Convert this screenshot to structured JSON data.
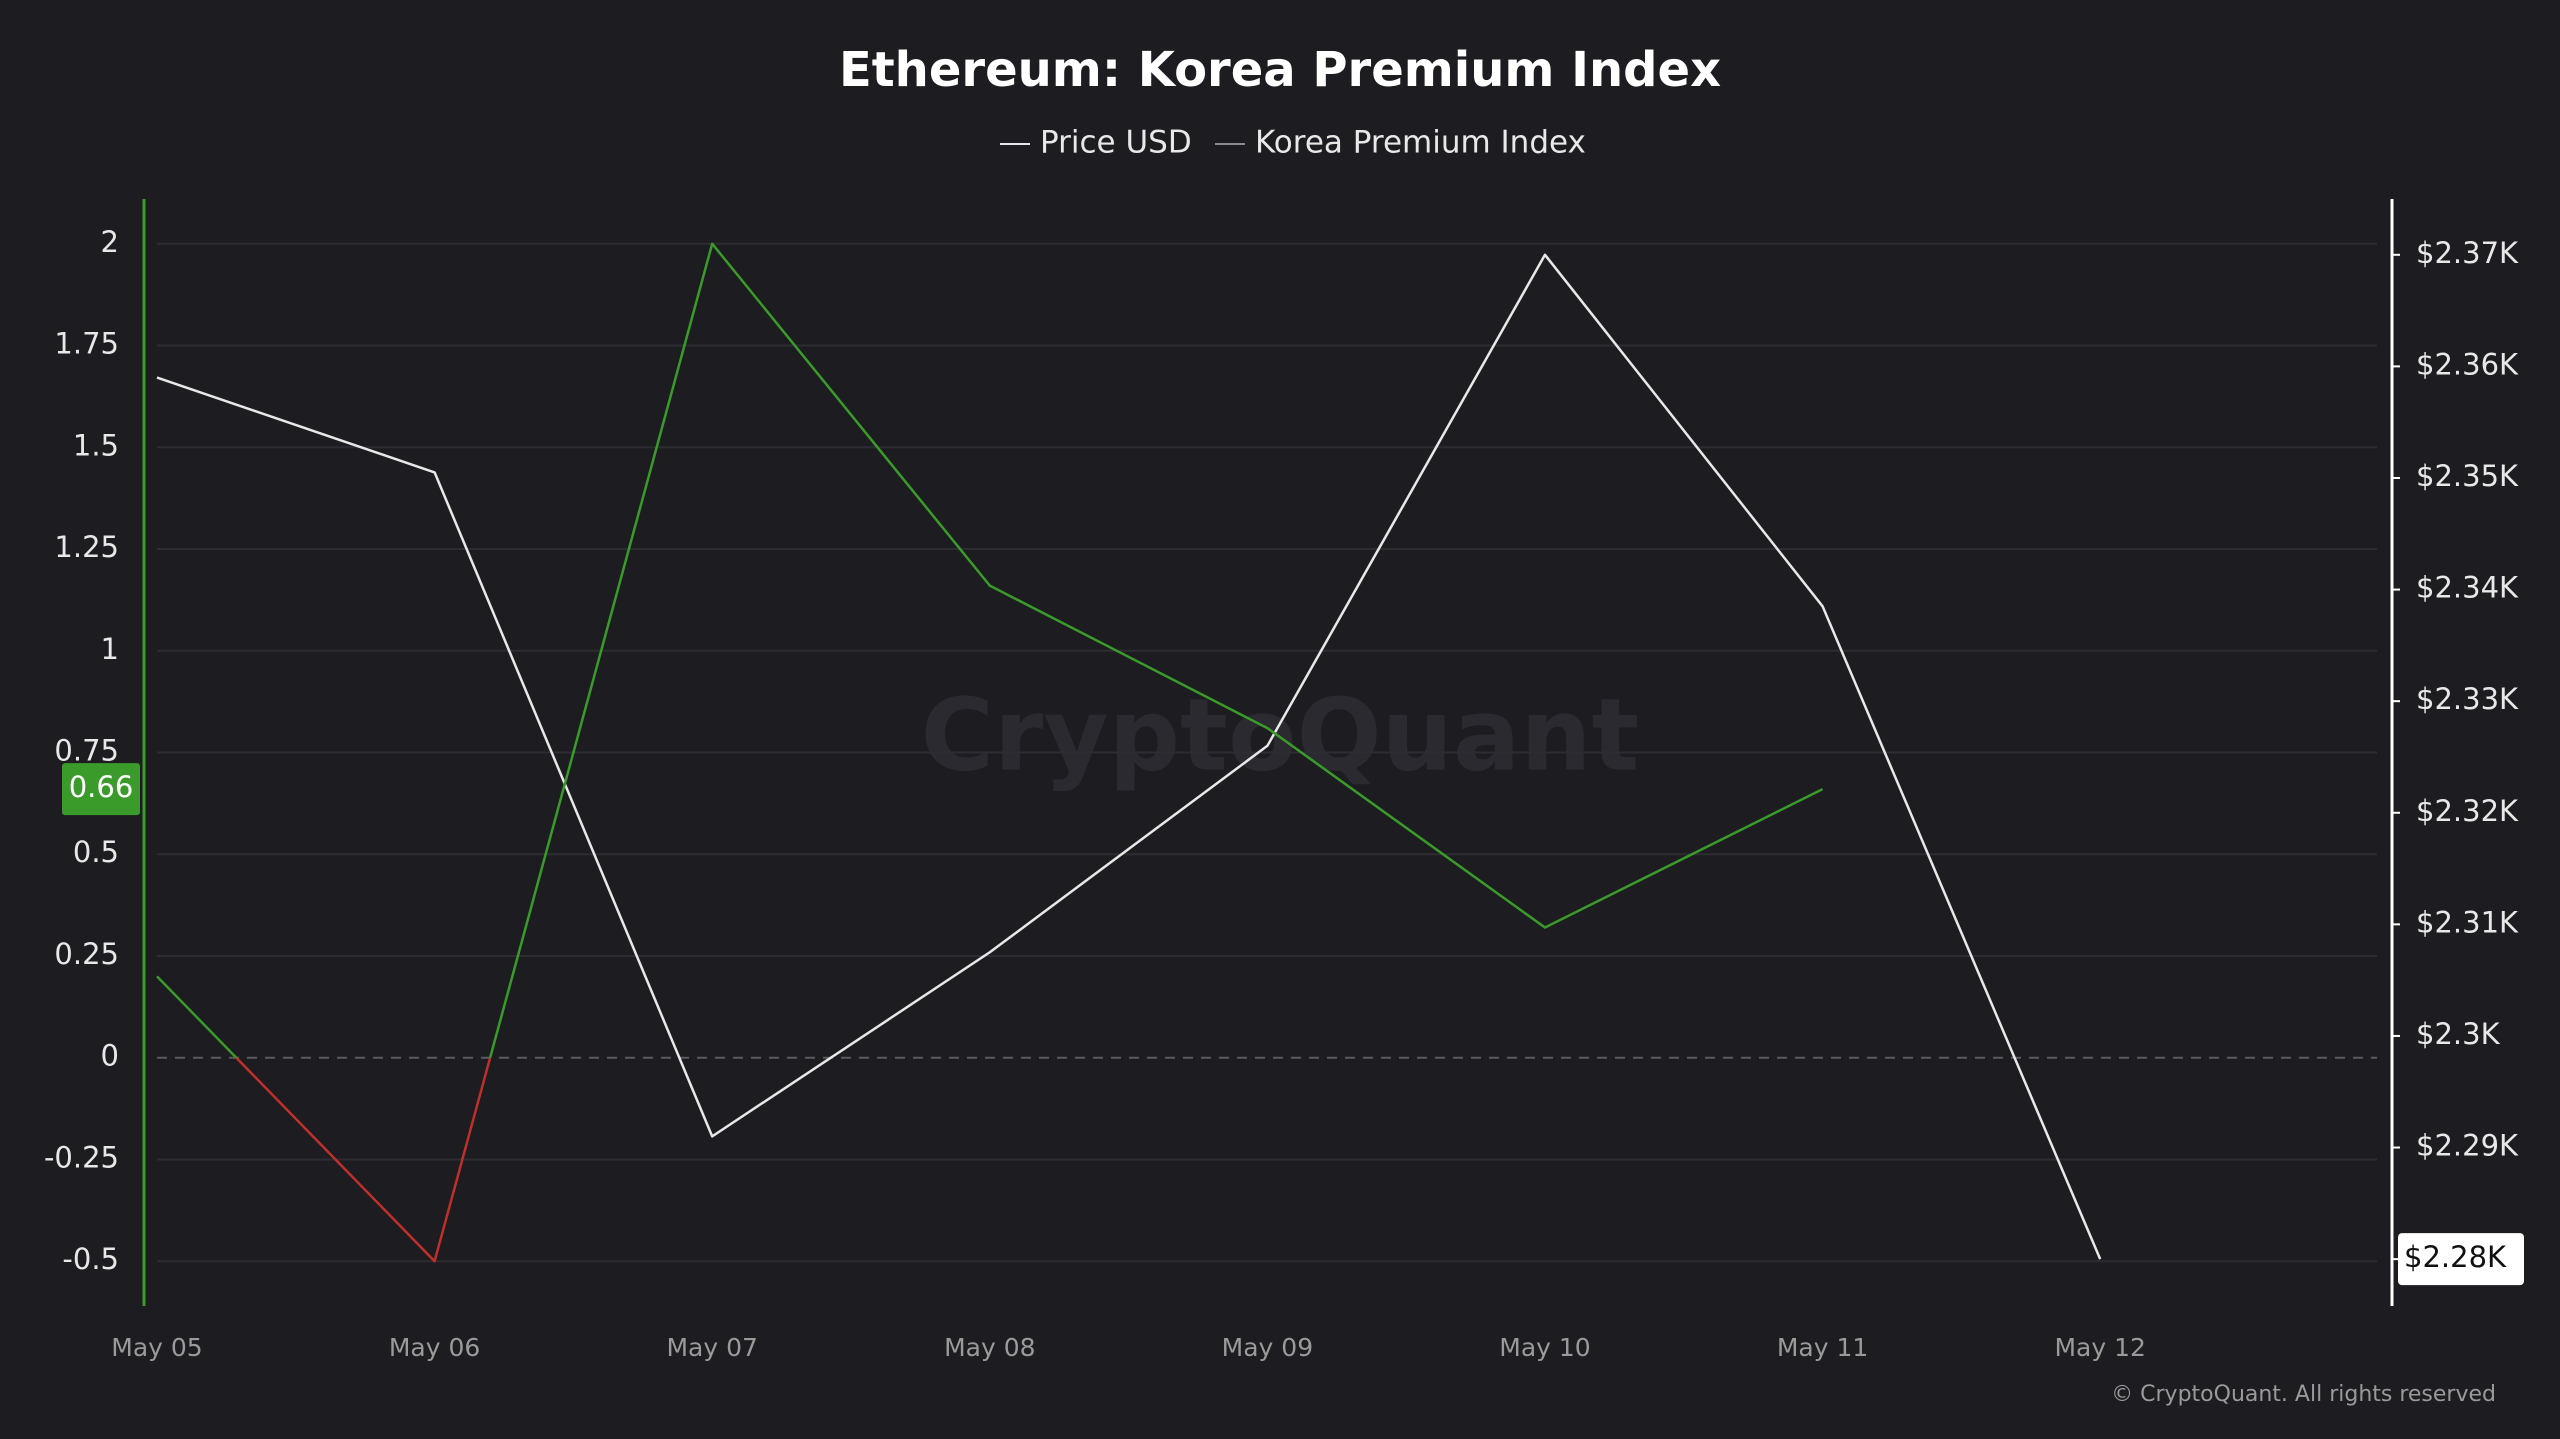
{
  "chart_data": {
    "type": "line",
    "title": "Ethereum: Korea Premium Index",
    "categories": [
      "May 05",
      "May 06",
      "May 07",
      "May 08",
      "May 09",
      "May 10",
      "May 11",
      "May 12"
    ],
    "series": [
      {
        "name": "Price USD",
        "color": "#e8e8e8",
        "axis": "y2",
        "values": [
          2359,
          2350.5,
          2291,
          2307.5,
          2326,
          2370,
          2338.5,
          2280
        ]
      },
      {
        "name": "Korea Premium Index",
        "color": "#3a9a2a",
        "negative_color": "#c0302a",
        "legend_color": "#8a8a8a",
        "axis": "y",
        "values": [
          0.2,
          -0.5,
          2.0,
          1.16,
          0.81,
          0.32,
          0.66,
          null
        ]
      }
    ],
    "ylim": [
      -0.61,
      2.11
    ],
    "yticks": [
      2,
      1.75,
      1.5,
      1.25,
      1,
      0.75,
      0.5,
      0.25,
      0,
      -0.25,
      -0.5
    ],
    "y2lim": [
      2275.8,
      2375
    ],
    "y2ticks": [
      {
        "value": 2370,
        "label": "$2.37K"
      },
      {
        "value": 2360,
        "label": "$2.36K"
      },
      {
        "value": 2350,
        "label": "$2.35K"
      },
      {
        "value": 2340,
        "label": "$2.34K"
      },
      {
        "value": 2330,
        "label": "$2.33K"
      },
      {
        "value": 2320,
        "label": "$2.32K"
      },
      {
        "value": 2310,
        "label": "$2.31K"
      },
      {
        "value": 2300,
        "label": "$2.3K"
      },
      {
        "value": 2290,
        "label": "$2.29K"
      },
      {
        "value": 2280,
        "label": "$2.28K"
      }
    ],
    "grid": true,
    "watermark": "CryptoQuant",
    "copyright": "© CryptoQuant. All rights reserved"
  }
}
